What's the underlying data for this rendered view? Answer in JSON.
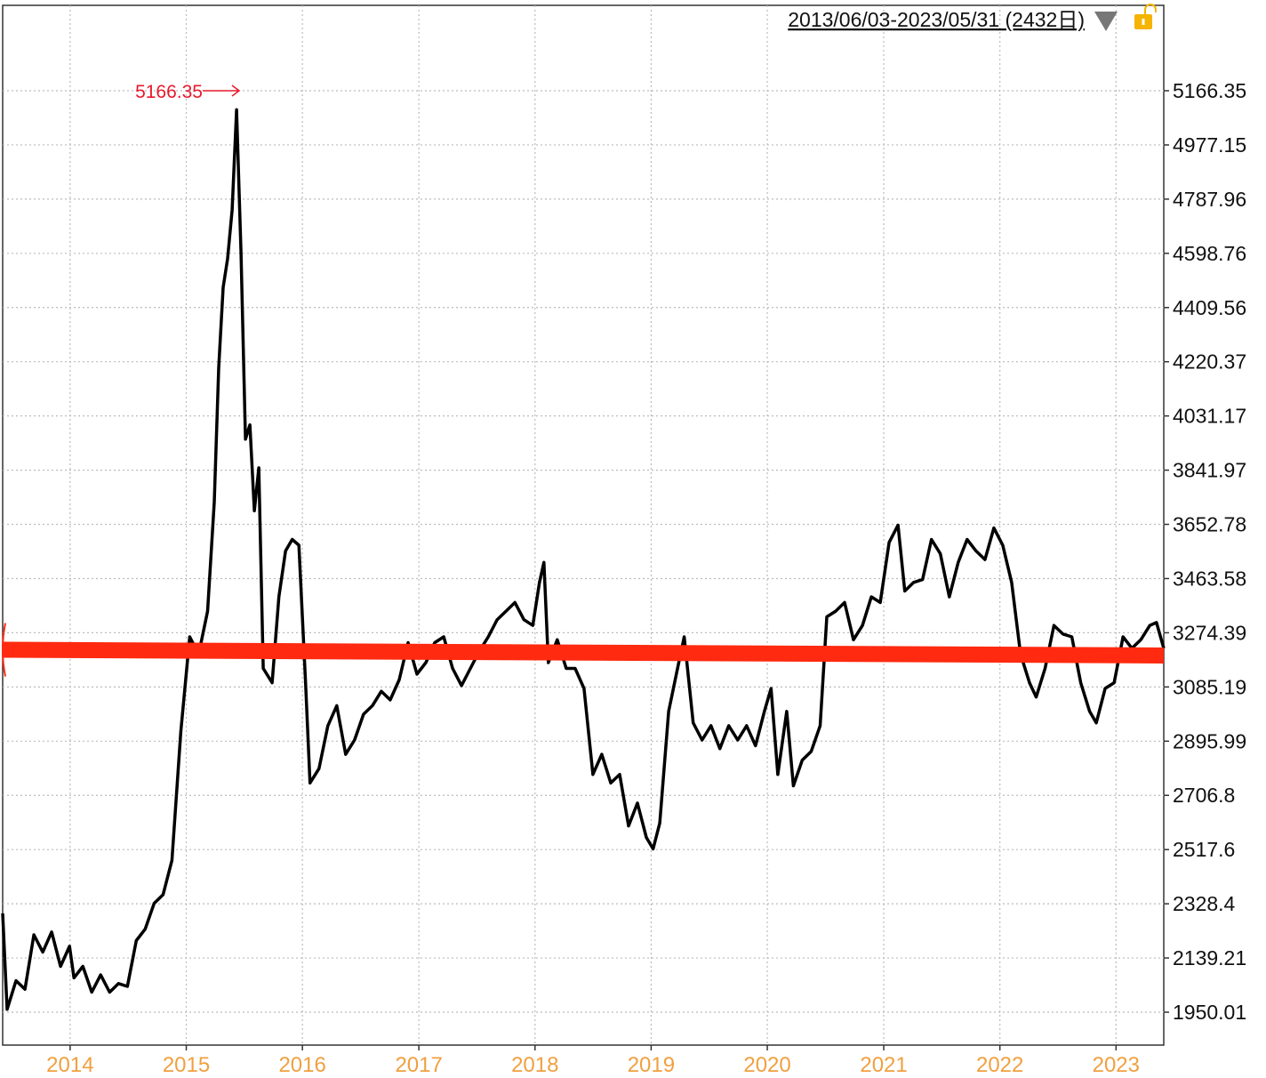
{
  "header": {
    "range_label": "2013/06/03-2023/05/31 (2432日)",
    "dropdown_icon": "triangle-down-icon",
    "lock_icon": "unlocked-padlock-icon"
  },
  "colors": {
    "line": "#000000",
    "overlay": "#ff2a10",
    "peak_annotation": "#e8192c",
    "x_tick": "#f0a040",
    "grid": "#bbbbbb",
    "lock": "#f4b400",
    "dropdown": "#777777"
  },
  "chart_data": {
    "type": "line",
    "title": "",
    "xlabel": "",
    "ylabel": "",
    "x_range": [
      "2013-06-03",
      "2023-05-31"
    ],
    "ylim": [
      1950.01,
      5166.35
    ],
    "y_ticks": [
      "5166.35",
      "4977.15",
      "4787.96",
      "4598.76",
      "4409.56",
      "4220.37",
      "4031.17",
      "3841.97",
      "3652.78",
      "3463.58",
      "3274.39",
      "3085.19",
      "2895.99",
      "2706.8",
      "2517.6",
      "2328.4",
      "2139.21",
      "1950.01"
    ],
    "x_ticks": [
      "2014",
      "2015",
      "2016",
      "2017",
      "2018",
      "2019",
      "2020",
      "2021",
      "2022",
      "2023"
    ],
    "grid": true,
    "annotations": [
      {
        "text": "5166.35",
        "type": "max-marker"
      }
    ],
    "series": [
      {
        "style": "line",
        "points": [
          [
            "2013-06-03",
            2295
          ],
          [
            "2013-06-17",
            1960
          ],
          [
            "2013-07-15",
            2060
          ],
          [
            "2013-08-12",
            2030
          ],
          [
            "2013-09-09",
            2220
          ],
          [
            "2013-10-07",
            2160
          ],
          [
            "2013-11-04",
            2230
          ],
          [
            "2013-12-02",
            2110
          ],
          [
            "2013-12-30",
            2180
          ],
          [
            "2014-01-13",
            2070
          ],
          [
            "2014-02-10",
            2110
          ],
          [
            "2014-03-10",
            2020
          ],
          [
            "2014-04-07",
            2080
          ],
          [
            "2014-05-05",
            2020
          ],
          [
            "2014-06-02",
            2050
          ],
          [
            "2014-06-30",
            2040
          ],
          [
            "2014-07-28",
            2200
          ],
          [
            "2014-08-25",
            2240
          ],
          [
            "2014-09-22",
            2330
          ],
          [
            "2014-10-20",
            2360
          ],
          [
            "2014-11-17",
            2480
          ],
          [
            "2014-12-15",
            2930
          ],
          [
            "2015-01-12",
            3260
          ],
          [
            "2015-02-09",
            3200
          ],
          [
            "2015-03-09",
            3350
          ],
          [
            "2015-03-30",
            3730
          ],
          [
            "2015-04-13",
            4200
          ],
          [
            "2015-04-27",
            4480
          ],
          [
            "2015-05-11",
            4580
          ],
          [
            "2015-05-25",
            4750
          ],
          [
            "2015-06-08",
            5100
          ],
          [
            "2015-06-22",
            4600
          ],
          [
            "2015-07-06",
            3950
          ],
          [
            "2015-07-20",
            4000
          ],
          [
            "2015-08-03",
            3700
          ],
          [
            "2015-08-17",
            3850
          ],
          [
            "2015-08-31",
            3150
          ],
          [
            "2015-09-28",
            3100
          ],
          [
            "2015-10-19",
            3400
          ],
          [
            "2015-11-09",
            3560
          ],
          [
            "2015-11-30",
            3600
          ],
          [
            "2015-12-21",
            3580
          ],
          [
            "2016-01-11",
            3100
          ],
          [
            "2016-01-25",
            2750
          ],
          [
            "2016-02-22",
            2800
          ],
          [
            "2016-03-21",
            2950
          ],
          [
            "2016-04-18",
            3020
          ],
          [
            "2016-05-16",
            2850
          ],
          [
            "2016-06-13",
            2900
          ],
          [
            "2016-07-11",
            2990
          ],
          [
            "2016-08-08",
            3020
          ],
          [
            "2016-09-05",
            3070
          ],
          [
            "2016-10-03",
            3040
          ],
          [
            "2016-10-31",
            3110
          ],
          [
            "2016-11-28",
            3240
          ],
          [
            "2016-12-26",
            3130
          ],
          [
            "2017-01-23",
            3170
          ],
          [
            "2017-02-20",
            3240
          ],
          [
            "2017-03-20",
            3260
          ],
          [
            "2017-04-17",
            3150
          ],
          [
            "2017-05-15",
            3090
          ],
          [
            "2017-06-12",
            3150
          ],
          [
            "2017-07-10",
            3210
          ],
          [
            "2017-08-07",
            3260
          ],
          [
            "2017-09-04",
            3320
          ],
          [
            "2017-10-02",
            3350
          ],
          [
            "2017-10-30",
            3380
          ],
          [
            "2017-11-27",
            3320
          ],
          [
            "2017-12-25",
            3300
          ],
          [
            "2018-01-15",
            3450
          ],
          [
            "2018-01-29",
            3520
          ],
          [
            "2018-02-12",
            3170
          ],
          [
            "2018-03-12",
            3250
          ],
          [
            "2018-04-09",
            3150
          ],
          [
            "2018-05-07",
            3150
          ],
          [
            "2018-06-04",
            3080
          ],
          [
            "2018-07-02",
            2780
          ],
          [
            "2018-07-30",
            2850
          ],
          [
            "2018-08-27",
            2750
          ],
          [
            "2018-09-24",
            2780
          ],
          [
            "2018-10-22",
            2600
          ],
          [
            "2018-11-19",
            2680
          ],
          [
            "2018-12-17",
            2560
          ],
          [
            "2019-01-07",
            2520
          ],
          [
            "2019-01-28",
            2610
          ],
          [
            "2019-02-25",
            3000
          ],
          [
            "2019-03-25",
            3150
          ],
          [
            "2019-04-15",
            3260
          ],
          [
            "2019-05-13",
            2960
          ],
          [
            "2019-06-10",
            2900
          ],
          [
            "2019-07-08",
            2950
          ],
          [
            "2019-08-05",
            2870
          ],
          [
            "2019-09-02",
            2950
          ],
          [
            "2019-09-30",
            2900
          ],
          [
            "2019-10-28",
            2950
          ],
          [
            "2019-11-25",
            2880
          ],
          [
            "2019-12-23",
            3000
          ],
          [
            "2020-01-13",
            3080
          ],
          [
            "2020-02-03",
            2780
          ],
          [
            "2020-03-02",
            3000
          ],
          [
            "2020-03-23",
            2740
          ],
          [
            "2020-04-20",
            2830
          ],
          [
            "2020-05-18",
            2860
          ],
          [
            "2020-06-15",
            2950
          ],
          [
            "2020-07-06",
            3330
          ],
          [
            "2020-08-03",
            3350
          ],
          [
            "2020-08-31",
            3380
          ],
          [
            "2020-09-28",
            3250
          ],
          [
            "2020-10-26",
            3300
          ],
          [
            "2020-11-23",
            3400
          ],
          [
            "2020-12-21",
            3380
          ],
          [
            "2021-01-18",
            3590
          ],
          [
            "2021-02-15",
            3650
          ],
          [
            "2021-03-08",
            3420
          ],
          [
            "2021-04-05",
            3450
          ],
          [
            "2021-05-03",
            3460
          ],
          [
            "2021-05-31",
            3600
          ],
          [
            "2021-06-28",
            3550
          ],
          [
            "2021-07-26",
            3400
          ],
          [
            "2021-08-23",
            3520
          ],
          [
            "2021-09-20",
            3600
          ],
          [
            "2021-10-18",
            3560
          ],
          [
            "2021-11-15",
            3530
          ],
          [
            "2021-12-13",
            3640
          ],
          [
            "2022-01-10",
            3580
          ],
          [
            "2022-02-07",
            3450
          ],
          [
            "2022-03-07",
            3200
          ],
          [
            "2022-04-04",
            3100
          ],
          [
            "2022-04-25",
            3050
          ],
          [
            "2022-05-23",
            3150
          ],
          [
            "2022-06-20",
            3300
          ],
          [
            "2022-07-18",
            3270
          ],
          [
            "2022-08-15",
            3260
          ],
          [
            "2022-09-12",
            3100
          ],
          [
            "2022-10-10",
            3000
          ],
          [
            "2022-10-31",
            2960
          ],
          [
            "2022-11-28",
            3080
          ],
          [
            "2022-12-26",
            3100
          ],
          [
            "2023-01-23",
            3260
          ],
          [
            "2023-02-20",
            3220
          ],
          [
            "2023-03-20",
            3250
          ],
          [
            "2023-04-17",
            3300
          ],
          [
            "2023-05-08",
            3310
          ],
          [
            "2023-05-31",
            3220
          ]
        ]
      },
      {
        "style": "trend-overlay",
        "points": [
          [
            "2013-06-03",
            3215
          ],
          [
            "2023-05-31",
            3195
          ]
        ]
      }
    ]
  }
}
